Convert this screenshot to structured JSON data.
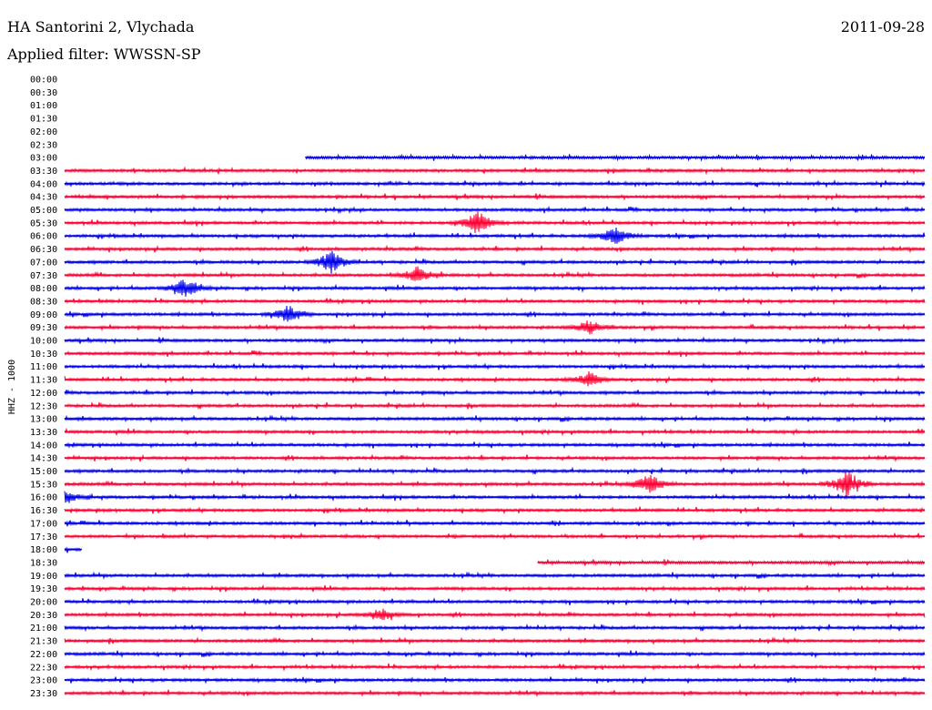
{
  "header": {
    "station": "HA Santorini 2, Vlychada",
    "date": "2011-09-28",
    "filter_label": "Applied filter: WWSSN-SP"
  },
  "colors": {
    "odd_row": "#0000ee",
    "even_row": "#ff0033",
    "text": "#000000"
  },
  "chart_data": {
    "type": "line",
    "title": "",
    "xlabel": "",
    "ylabel": "HHZ - 1000",
    "grid": false,
    "row_times": [
      "00:00",
      "00:30",
      "01:00",
      "01:30",
      "02:00",
      "02:30",
      "03:00",
      "03:30",
      "04:00",
      "04:30",
      "05:00",
      "05:30",
      "06:00",
      "06:30",
      "07:00",
      "07:30",
      "08:00",
      "08:30",
      "09:00",
      "09:30",
      "10:00",
      "10:30",
      "11:00",
      "11:30",
      "12:00",
      "12:30",
      "13:00",
      "13:30",
      "14:00",
      "14:30",
      "15:00",
      "15:30",
      "16:00",
      "16:30",
      "17:00",
      "17:30",
      "18:00",
      "18:30",
      "19:00",
      "19:30",
      "20:00",
      "20:30",
      "21:00",
      "21:30",
      "22:00",
      "22:30",
      "23:00",
      "23:30"
    ],
    "data_segments": [
      {
        "row": "03:00",
        "start_frac": 0.28,
        "end_frac": 1.0
      },
      {
        "row": "18:00",
        "start_frac": 0.0,
        "end_frac": 0.02
      },
      {
        "row": "18:30",
        "start_frac": 0.55,
        "end_frac": 1.0
      }
    ],
    "events": [
      {
        "row": "05:30",
        "pos": 0.48,
        "amp": 10
      },
      {
        "row": "06:00",
        "pos": 0.64,
        "amp": 8
      },
      {
        "row": "07:00",
        "pos": 0.31,
        "amp": 10
      },
      {
        "row": "07:30",
        "pos": 0.41,
        "amp": 6
      },
      {
        "row": "08:00",
        "pos": 0.14,
        "amp": 8
      },
      {
        "row": "09:00",
        "pos": 0.26,
        "amp": 7
      },
      {
        "row": "09:30",
        "pos": 0.61,
        "amp": 6
      },
      {
        "row": "11:30",
        "pos": 0.61,
        "amp": 6
      },
      {
        "row": "15:30",
        "pos": 0.68,
        "amp": 8
      },
      {
        "row": "15:30",
        "pos": 0.91,
        "amp": 11
      },
      {
        "row": "16:00",
        "pos": 0.0,
        "amp": 6
      },
      {
        "row": "20:30",
        "pos": 0.37,
        "amp": 4
      }
    ]
  }
}
